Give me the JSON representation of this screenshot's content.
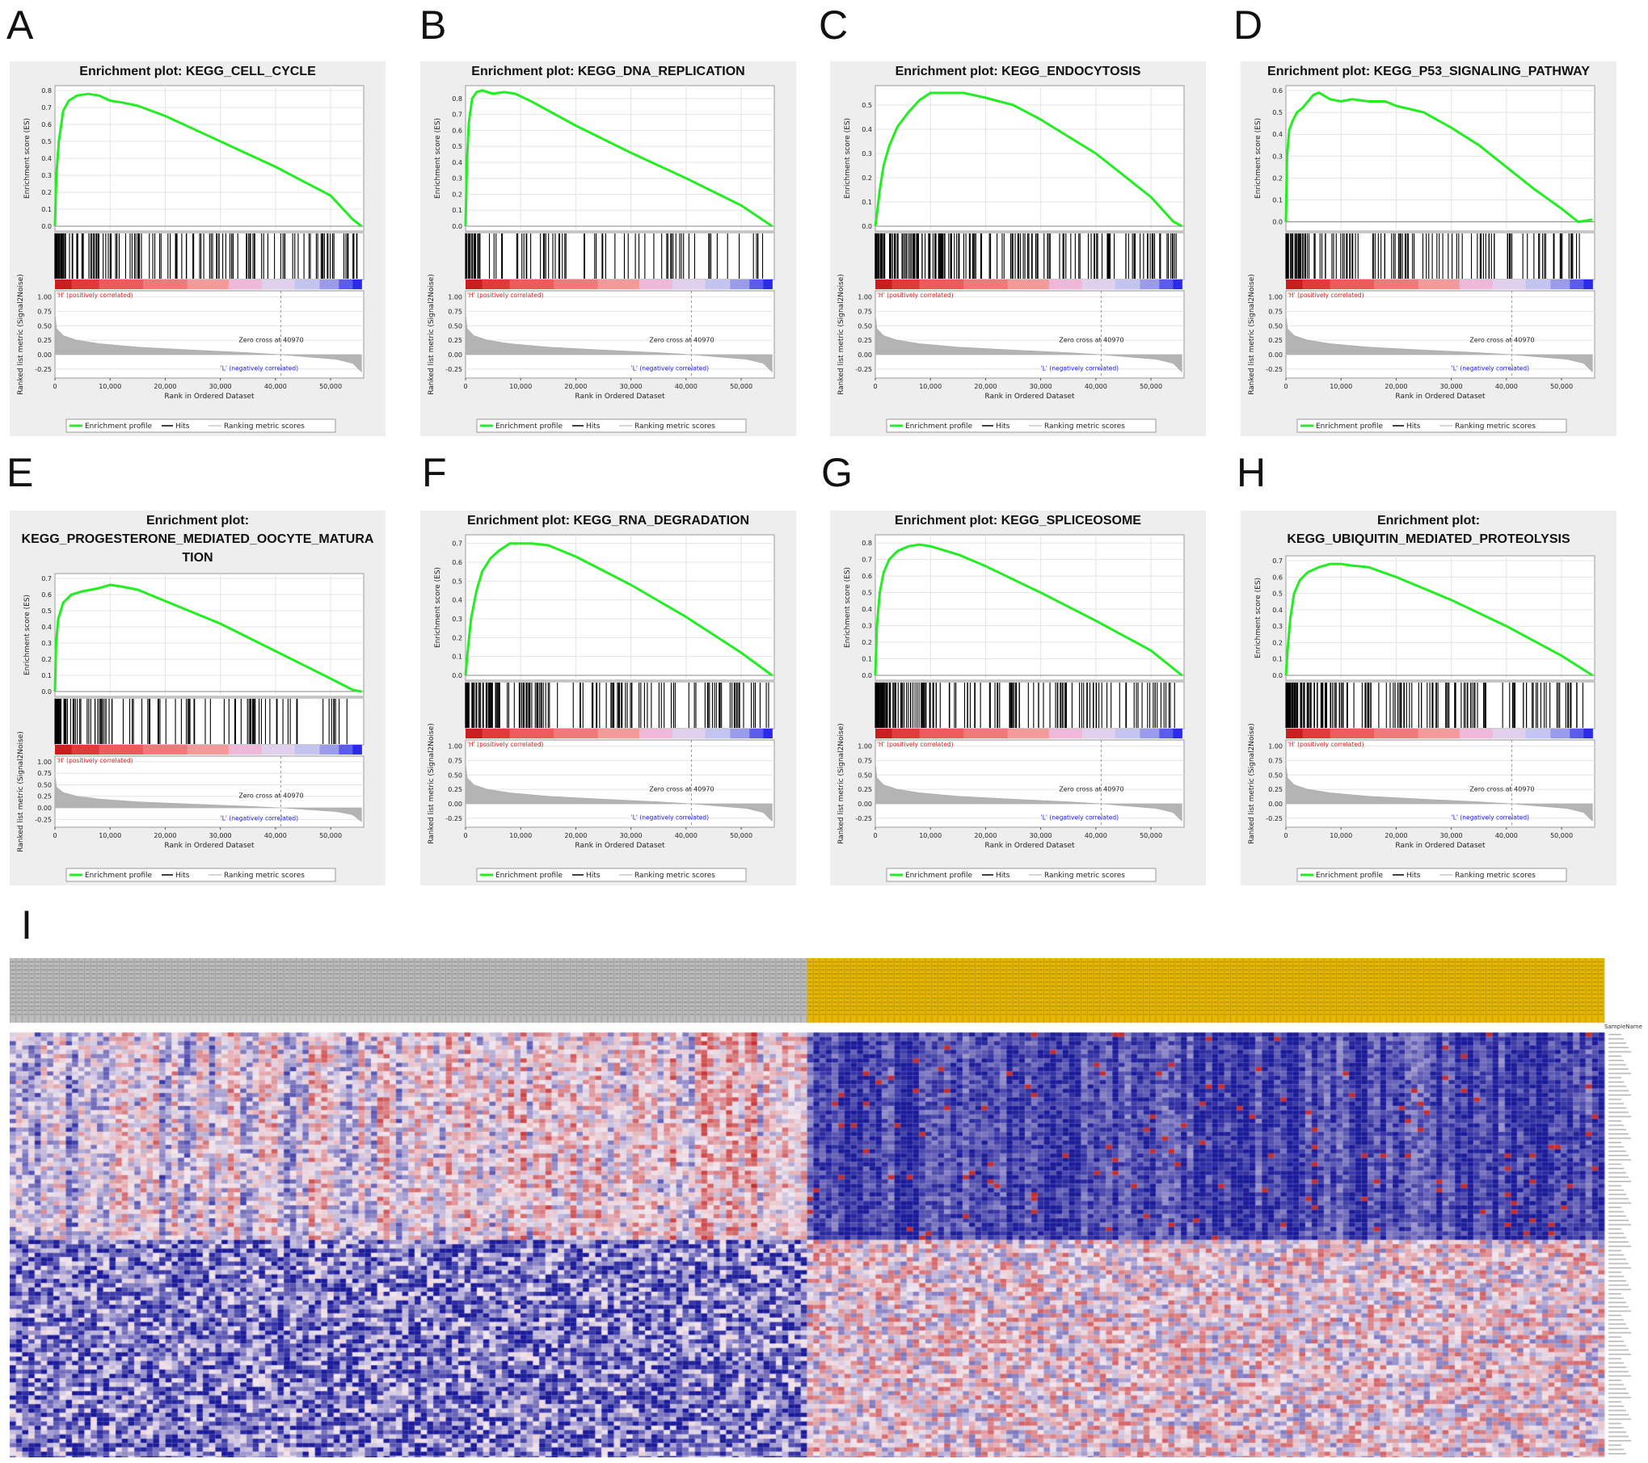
{
  "panel_letters": [
    "A",
    "B",
    "C",
    "D",
    "E",
    "F",
    "G",
    "H",
    "I"
  ],
  "common": {
    "es_ylabel": "Enrichment score (ES)",
    "metric_ylabel": "Ranked list metric (Signal2Noise)",
    "xlabel": "Rank in Ordered Dataset",
    "x_ticks": [
      "0",
      "10,000",
      "20,000",
      "30,000",
      "40,000",
      "50,000"
    ],
    "metric_ticks": [
      "1.00",
      "0.75",
      "0.50",
      "0.25",
      "0.00",
      "-0.25"
    ],
    "pos_label": "'H' (positively correlated)",
    "neg_label": "'L' (negatively correlated)",
    "zero_cross": "Zero cross at 40970",
    "legend_enrichment": "Enrichment profile",
    "legend_hits": "Hits",
    "legend_ranking": "Ranking metric scores",
    "colors": {
      "es_line": "#22ee22",
      "pos_label": "#dd2222",
      "neg_label": "#2222dd",
      "panel_bg": "#eeeeee"
    }
  },
  "heatmap": {
    "row_header": "SampleName",
    "group_colors": {
      "left": "#bdbdbd",
      "right": "#e8b800"
    },
    "color_scale": {
      "low": "#1a1a9a",
      "mid": "#f2e6ee",
      "high": "#c21818"
    }
  },
  "chart_data": [
    {
      "type": "line",
      "panel": "A",
      "title_lines": [
        "Enrichment plot: KEGG_CELL_CYCLE"
      ],
      "ylim": [
        0,
        0.8
      ],
      "es_ticks": [
        "0.0",
        "0.1",
        "0.2",
        "0.3",
        "0.4",
        "0.5",
        "0.6",
        "0.7",
        "0.8"
      ],
      "x": [
        0,
        250,
        700,
        1500,
        2500,
        4000,
        6000,
        8000,
        10000,
        12000,
        15000,
        20000,
        30000,
        40000,
        50000,
        54000,
        55600
      ],
      "es": [
        0,
        0.3,
        0.5,
        0.68,
        0.74,
        0.77,
        0.78,
        0.77,
        0.74,
        0.73,
        0.71,
        0.65,
        0.5,
        0.35,
        0.18,
        0.04,
        0.0
      ],
      "xlim": [
        0,
        56000
      ]
    },
    {
      "type": "line",
      "panel": "B",
      "title_lines": [
        "Enrichment plot: KEGG_DNA_REPLICATION"
      ],
      "ylim": [
        0,
        0.85
      ],
      "es_ticks": [
        "0.0",
        "0.1",
        "0.2",
        "0.3",
        "0.4",
        "0.5",
        "0.6",
        "0.7",
        "0.8"
      ],
      "x": [
        0,
        250,
        600,
        1200,
        2000,
        3000,
        5000,
        7000,
        9000,
        12000,
        20000,
        30000,
        40000,
        50000,
        55600
      ],
      "es": [
        0,
        0.4,
        0.65,
        0.8,
        0.84,
        0.85,
        0.83,
        0.84,
        0.83,
        0.78,
        0.63,
        0.46,
        0.3,
        0.13,
        0.0
      ],
      "xlim": [
        0,
        56000
      ]
    },
    {
      "type": "line",
      "panel": "C",
      "title_lines": [
        "Enrichment plot: KEGG_ENDOCYTOSIS"
      ],
      "ylim": [
        0,
        0.56
      ],
      "es_ticks": [
        "0.0",
        "0.1",
        "0.2",
        "0.3",
        "0.4",
        "0.5"
      ],
      "x": [
        0,
        300,
        800,
        1500,
        2500,
        4000,
        6000,
        8000,
        10000,
        13000,
        16000,
        20000,
        25000,
        30000,
        40000,
        50000,
        54000,
        55600
      ],
      "es": [
        0,
        0.05,
        0.15,
        0.25,
        0.33,
        0.41,
        0.47,
        0.52,
        0.55,
        0.55,
        0.55,
        0.53,
        0.5,
        0.44,
        0.3,
        0.12,
        0.02,
        0.0
      ],
      "xlim": [
        0,
        56000
      ]
    },
    {
      "type": "line",
      "panel": "D",
      "title_lines": [
        "Enrichment plot: KEGG_P53_SIGNALING_PATHWAY"
      ],
      "ylim": [
        -0.02,
        0.6
      ],
      "es_ticks": [
        "0.0",
        "0.1",
        "0.2",
        "0.3",
        "0.4",
        "0.5",
        "0.6"
      ],
      "x": [
        0,
        200,
        600,
        1200,
        2000,
        3000,
        4000,
        5000,
        6000,
        8000,
        10000,
        12000,
        15000,
        18000,
        20000,
        25000,
        30000,
        35000,
        40000,
        45000,
        50000,
        53000,
        55600
      ],
      "es": [
        0,
        0.3,
        0.42,
        0.46,
        0.5,
        0.52,
        0.55,
        0.58,
        0.59,
        0.56,
        0.55,
        0.56,
        0.55,
        0.55,
        0.53,
        0.5,
        0.43,
        0.35,
        0.25,
        0.15,
        0.06,
        0.0,
        0.01
      ],
      "xlim": [
        0,
        56000
      ]
    },
    {
      "type": "line",
      "panel": "E",
      "title_lines": [
        "Enrichment plot:",
        "KEGG_PROGESTERONE_MEDIATED_OOCYTE_MATURA",
        "TION"
      ],
      "ylim": [
        0,
        0.7
      ],
      "es_ticks": [
        "0.0",
        "0.1",
        "0.2",
        "0.3",
        "0.4",
        "0.5",
        "0.6",
        "0.7"
      ],
      "x": [
        0,
        200,
        600,
        1500,
        3000,
        5000,
        8000,
        10000,
        12000,
        15000,
        20000,
        30000,
        40000,
        50000,
        54000,
        55600
      ],
      "es": [
        0,
        0.3,
        0.45,
        0.55,
        0.6,
        0.62,
        0.64,
        0.66,
        0.65,
        0.63,
        0.56,
        0.42,
        0.25,
        0.08,
        0.01,
        0.0
      ],
      "xlim": [
        0,
        56000
      ]
    },
    {
      "type": "line",
      "panel": "F",
      "title_lines": [
        "Enrichment plot: KEGG_RNA_DEGRADATION"
      ],
      "ylim": [
        0,
        0.72
      ],
      "es_ticks": [
        "0.0",
        "0.1",
        "0.2",
        "0.3",
        "0.4",
        "0.5",
        "0.6",
        "0.7"
      ],
      "x": [
        0,
        300,
        1000,
        2000,
        3000,
        4500,
        6000,
        8000,
        10000,
        12000,
        15000,
        20000,
        30000,
        40000,
        50000,
        55600
      ],
      "es": [
        0,
        0.1,
        0.3,
        0.45,
        0.55,
        0.62,
        0.66,
        0.7,
        0.7,
        0.7,
        0.69,
        0.63,
        0.48,
        0.31,
        0.12,
        0.0
      ],
      "xlim": [
        0,
        56000
      ]
    },
    {
      "type": "line",
      "panel": "G",
      "title_lines": [
        "Enrichment plot: KEGG_SPLICEOSOME"
      ],
      "ylim": [
        0,
        0.82
      ],
      "es_ticks": [
        "0.0",
        "0.1",
        "0.2",
        "0.3",
        "0.4",
        "0.5",
        "0.6",
        "0.7",
        "0.8"
      ],
      "x": [
        0,
        300,
        800,
        1500,
        2500,
        4000,
        6000,
        8000,
        10000,
        12000,
        15000,
        20000,
        30000,
        40000,
        50000,
        55600
      ],
      "es": [
        0,
        0.3,
        0.5,
        0.62,
        0.7,
        0.75,
        0.78,
        0.79,
        0.78,
        0.76,
        0.73,
        0.66,
        0.5,
        0.33,
        0.15,
        0.0
      ],
      "xlim": [
        0,
        56000
      ]
    },
    {
      "type": "line",
      "panel": "H",
      "title_lines": [
        "Enrichment plot:",
        "KEGG_UBIQUITIN_MEDIATED_PROTEOLYSIS"
      ],
      "ylim": [
        0,
        0.7
      ],
      "es_ticks": [
        "0.0",
        "0.1",
        "0.2",
        "0.3",
        "0.4",
        "0.5",
        "0.6",
        "0.7"
      ],
      "x": [
        0,
        300,
        800,
        1500,
        2500,
        4000,
        6000,
        8000,
        10000,
        12000,
        15000,
        20000,
        30000,
        40000,
        50000,
        55600
      ],
      "es": [
        0,
        0.15,
        0.35,
        0.5,
        0.58,
        0.63,
        0.66,
        0.68,
        0.68,
        0.67,
        0.66,
        0.6,
        0.46,
        0.3,
        0.12,
        0.0
      ],
      "xlim": [
        0,
        56000
      ]
    },
    {
      "type": "heatmap",
      "panel": "I",
      "groups": [
        "left",
        "right"
      ],
      "group_sizes": [
        128,
        128
      ],
      "row_groups": [
        "upper",
        "lower"
      ]
    }
  ]
}
